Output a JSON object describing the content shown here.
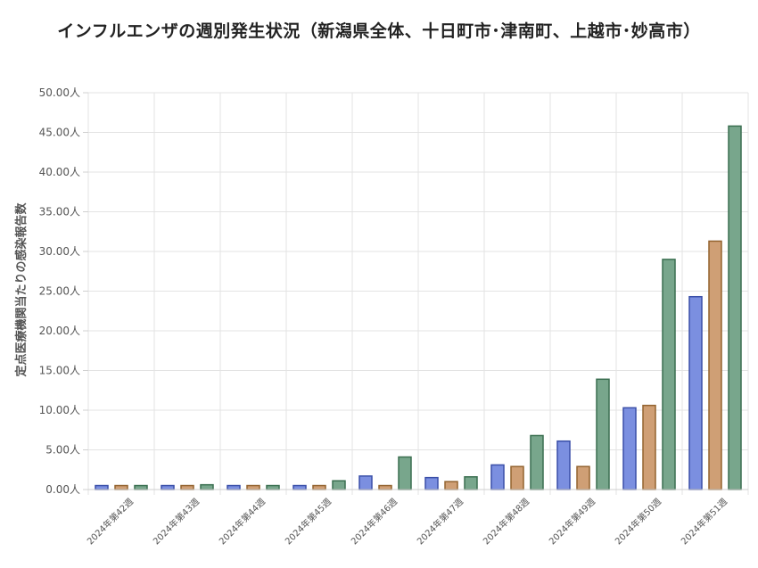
{
  "chart_data": {
    "type": "bar",
    "title": "インフルエンザの週別発生状況（新潟県全体、十日町市･津南町、上越市･妙高市）",
    "ylabel": "定点医療機関当たりの感染報告数",
    "xlabel": "",
    "y_unit": "人",
    "ylim": [
      0,
      50
    ],
    "y_ticks": [
      "0.00人",
      "5.00人",
      "10.00人",
      "15.00人",
      "20.00人",
      "25.00人",
      "30.00人",
      "35.00人",
      "40.00人",
      "45.00人",
      "50.00人"
    ],
    "grid": true,
    "legend": "none",
    "categories": [
      "2024年第42週",
      "2024年第43週",
      "2024年第44週",
      "2024年第45週",
      "2024年第46週",
      "2024年第47週",
      "2024年第48週",
      "2024年第49週",
      "2024年第50週",
      "2024年第51週"
    ],
    "series": [
      {
        "values": [
          0.5,
          0.5,
          0.5,
          0.5,
          1.7,
          1.5,
          3.1,
          6.1,
          10.3,
          24.3
        ],
        "color": "#7b8fe0",
        "border": "#3a4fa8"
      },
      {
        "values": [
          0.5,
          0.5,
          0.5,
          0.5,
          0.5,
          1.0,
          2.9,
          2.9,
          10.6,
          31.3
        ],
        "color": "#cf9f75",
        "border": "#93632f"
      },
      {
        "values": [
          0.5,
          0.6,
          0.5,
          1.1,
          4.1,
          1.6,
          6.8,
          13.9,
          29.0,
          45.8
        ],
        "color": "#78a68c",
        "border": "#3a6f50"
      }
    ]
  }
}
